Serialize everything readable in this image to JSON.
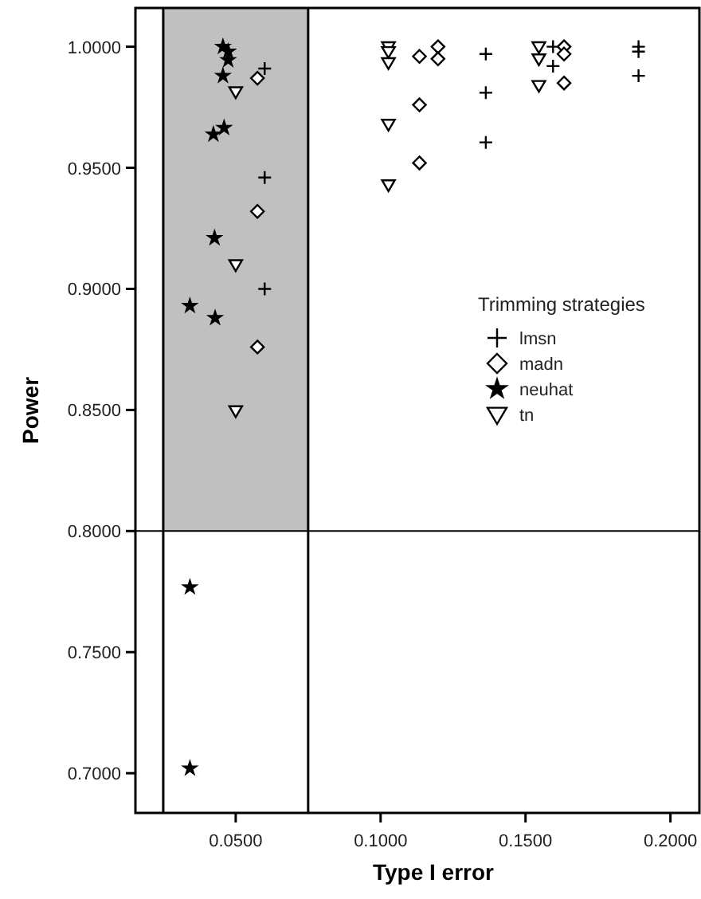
{
  "chart_data": {
    "type": "scatter",
    "xlabel": "Type I error",
    "ylabel": "Power",
    "legend_title": "Trimming strategies",
    "legend": "right",
    "grid": false,
    "xlim": [
      0.0154,
      0.21
    ],
    "ylim": [
      0.6836,
      1.016
    ],
    "xticks": [
      {
        "value": 0.05,
        "label": "0.0500"
      },
      {
        "value": 0.1,
        "label": "0.1000"
      },
      {
        "value": 0.15,
        "label": "0.1500"
      },
      {
        "value": 0.2,
        "label": "0.2000"
      }
    ],
    "yticks": [
      {
        "value": 0.7,
        "label": "0.7000"
      },
      {
        "value": 0.75,
        "label": "0.7500"
      },
      {
        "value": 0.8,
        "label": "0.8000"
      },
      {
        "value": 0.85,
        "label": "0.8500"
      },
      {
        "value": 0.9,
        "label": "0.9000"
      },
      {
        "value": 0.95,
        "label": "0.9500"
      },
      {
        "value": 1,
        "label": "1.0000"
      }
    ],
    "ref_lines": [
      {
        "axis": "x",
        "value": 0.025,
        "color": "#000000"
      },
      {
        "axis": "x",
        "value": 0.075,
        "color": "#000000"
      },
      {
        "axis": "y",
        "value": 0.8,
        "color": "#000000"
      }
    ],
    "bands": [
      {
        "axis": "x",
        "from": 0.025,
        "to": 0.075,
        "color": "#c0c0c0"
      }
    ],
    "series": [
      {
        "name": "lmsn",
        "color": "#000000",
        "marker": "cross",
        "x": [
          0.06,
          0.06,
          0.06,
          0.1363,
          0.1363,
          0.1363,
          0.1595,
          0.1595,
          0.189,
          0.189,
          0.189
        ],
        "values": [
          0.991,
          0.946,
          0.9,
          0.997,
          0.981,
          0.9605,
          1.0,
          0.992,
          1.0,
          0.998,
          0.988
        ]
      },
      {
        "name": "madn",
        "color": "#000000",
        "marker": "diamond",
        "x": [
          0.0575,
          0.0575,
          0.0575,
          0.1134,
          0.1198,
          0.1198,
          0.1134,
          0.1134,
          0.1633,
          0.1633,
          0.1633
        ],
        "values": [
          0.987,
          0.932,
          0.876,
          0.996,
          1.0,
          0.995,
          0.976,
          0.952,
          1.0,
          0.997,
          0.985
        ]
      },
      {
        "name": "neuhat",
        "color": "#000000",
        "marker": "star",
        "x": [
          0.0456,
          0.0474,
          0.0474,
          0.0456,
          0.0423,
          0.046,
          0.0427,
          0.0342,
          0.0429,
          0.0342,
          0.0342
        ],
        "values": [
          1.0,
          0.998,
          0.9945,
          0.988,
          0.9638,
          0.9665,
          0.921,
          0.893,
          0.888,
          0.7768,
          0.702
        ]
      },
      {
        "name": "tn",
        "color": "#000000",
        "marker": "triangle",
        "x": [
          0.05,
          0.05,
          0.05,
          0.1027,
          0.1027,
          0.1027,
          0.1027,
          0.1027,
          0.1546,
          0.1546,
          0.1546
        ],
        "values": [
          0.9814,
          0.91,
          0.8497,
          1.0,
          0.998,
          0.9934,
          0.968,
          0.943,
          1.0,
          0.995,
          0.984
        ]
      }
    ]
  }
}
